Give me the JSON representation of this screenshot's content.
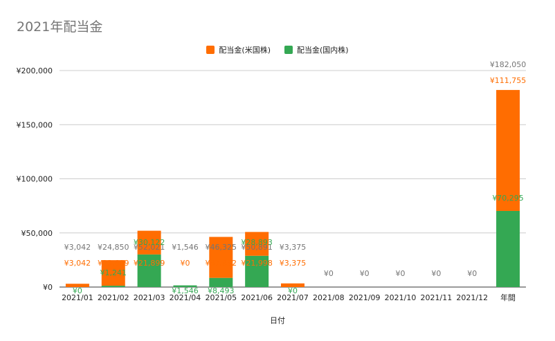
{
  "chart_data": {
    "type": "bar",
    "stacked": true,
    "title": "2021年配当金",
    "xlabel": "日付",
    "ylabel": "",
    "ylim": [
      0,
      200000
    ],
    "yticks": [
      "¥0",
      "¥50,000",
      "¥100,000",
      "¥150,000",
      "¥200,000"
    ],
    "ytick_values": [
      0,
      50000,
      100000,
      150000,
      200000
    ],
    "grid": true,
    "legend_position": "top",
    "categories": [
      "2021/01",
      "2021/02",
      "2021/03",
      "2021/04",
      "2021/05",
      "2021/06",
      "2021/07",
      "2021/08",
      "2021/09",
      "2021/10",
      "2021/11",
      "2021/12",
      "年間"
    ],
    "series": [
      {
        "name": "配当金(国内株)",
        "color": "#34a853",
        "values": [
          0,
          1241,
          30122,
          1546,
          8493,
          28893,
          0,
          0,
          0,
          0,
          0,
          0,
          70295
        ],
        "labels": [
          "¥0",
          "¥1,241",
          "¥30,122",
          "¥1,546",
          "¥8,493",
          "¥28,893",
          "¥0",
          "",
          "",
          "",
          "",
          "",
          "¥70,295"
        ]
      },
      {
        "name": "配当金(米国株)",
        "color": "#ff6d01",
        "values": [
          3042,
          23609,
          21899,
          0,
          37832,
          21998,
          3375,
          0,
          0,
          0,
          0,
          0,
          111755
        ],
        "labels": [
          "¥3,042",
          "¥23,609",
          "¥21,899",
          "¥0",
          "¥37,832",
          "¥21,998",
          "¥3,375",
          "",
          "",
          "",
          "",
          "",
          "¥111,755"
        ]
      }
    ],
    "totals": [
      3042,
      24850,
      52021,
      1546,
      46325,
      50891,
      3375,
      0,
      0,
      0,
      0,
      0,
      182050
    ],
    "total_labels": [
      "¥3,042",
      "¥24,850",
      "¥52,021",
      "¥1,546",
      "¥46,325",
      "¥50,891",
      "¥3,375",
      "¥0",
      "¥0",
      "¥0",
      "¥0",
      "¥0",
      "¥182,050"
    ],
    "colors": {
      "axis_text": "#222222",
      "grid": "#cccccc",
      "total_text": "#757575"
    }
  }
}
